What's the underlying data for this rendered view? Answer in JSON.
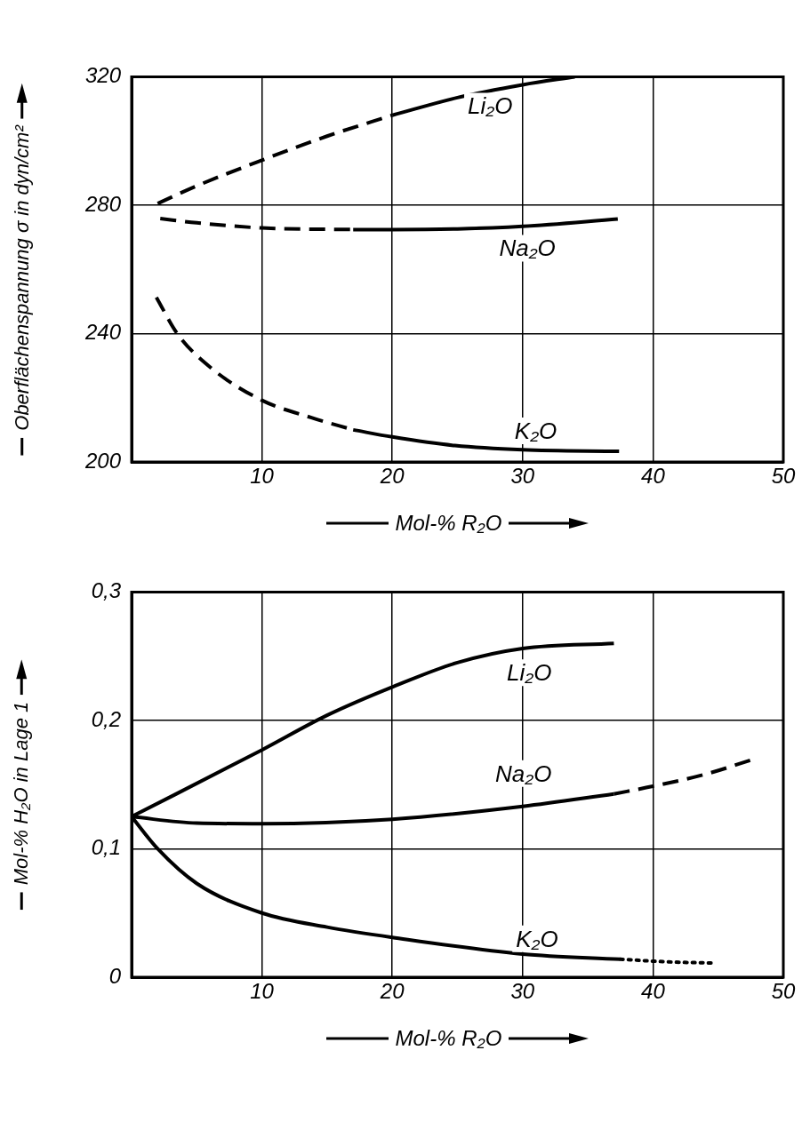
{
  "chart_data": [
    {
      "type": "line",
      "ylabel": "Oberflächenspannung σ in dyn/cm²",
      "xlabel": "Mol-% R₂O",
      "xlim": [
        0,
        50
      ],
      "xticks": [
        10,
        20,
        30,
        40,
        50
      ],
      "ylim": [
        200,
        320
      ],
      "yticks": [
        200,
        240,
        280,
        320
      ],
      "grid": true,
      "legend": false,
      "marker": "none",
      "series": [
        {
          "color": "#000000",
          "line_style": "dashed",
          "x": [
            2,
            5,
            10,
            15,
            20
          ],
          "values": [
            280.5,
            286,
            294,
            301.5,
            308
          ]
        },
        {
          "name": "Li₂O",
          "color": "#000000",
          "line_style": "solid",
          "x": [
            20,
            25,
            30,
            34
          ],
          "values": [
            308,
            313.5,
            317.5,
            320
          ]
        },
        {
          "color": "#000000",
          "line_style": "dashed",
          "x": [
            2.2,
            5,
            10,
            17
          ],
          "values": [
            275.8,
            274.5,
            272.9,
            272.4
          ]
        },
        {
          "name": "Na₂O",
          "color": "#000000",
          "line_style": "solid",
          "x": [
            17,
            20,
            25,
            30,
            37.3
          ],
          "values": [
            272.4,
            272.4,
            272.6,
            273.4,
            275.7
          ]
        },
        {
          "color": "#000000",
          "line_style": "dashed",
          "x": [
            1.9,
            3.5,
            6,
            10,
            13.8,
            17
          ],
          "values": [
            251.3,
            240,
            229.6,
            219.2,
            213.8,
            210
          ]
        },
        {
          "name": "K₂O",
          "color": "#000000",
          "line_style": "solid",
          "x": [
            17,
            20,
            24.8,
            30,
            37.4
          ],
          "values": [
            210,
            207.8,
            205.1,
            203.8,
            203.3
          ]
        }
      ]
    },
    {
      "type": "line",
      "ylabel": "Mol-% H₂O in Lage 1",
      "xlabel": "Mol-% R₂O",
      "xlim": [
        0,
        50
      ],
      "xticks": [
        10,
        20,
        30,
        40,
        50
      ],
      "ylim": [
        0,
        0.3
      ],
      "yticks": [
        0,
        {
          "value": 0.1,
          "label": "0,1"
        },
        {
          "value": 0.2,
          "label": "0,2"
        },
        {
          "value": 0.3,
          "label": "0,3"
        }
      ],
      "grid": true,
      "legend": false,
      "marker": "none",
      "series": [
        {
          "name": "Li₂O",
          "color": "#000000",
          "line_style": "solid",
          "x": [
            0,
            10,
            15,
            20,
            25,
            30,
            37
          ],
          "values": [
            0.125,
            0.177,
            0.204,
            0.226,
            0.245,
            0.256,
            0.26
          ]
        },
        {
          "name": "Na₂O",
          "color": "#000000",
          "line_style": "solid",
          "x": [
            0,
            5,
            10,
            20,
            30,
            37
          ],
          "values": [
            0.125,
            0.12,
            0.1195,
            0.123,
            0.133,
            0.1427
          ]
        },
        {
          "color": "#000000",
          "line_style": "dashed",
          "x": [
            37,
            40,
            44,
            47.5
          ],
          "values": [
            0.1427,
            0.1487,
            0.158,
            0.169
          ]
        },
        {
          "name": "K₂O",
          "color": "#000000",
          "line_style": "solid",
          "x": [
            0,
            2,
            5,
            10,
            15,
            20,
            30,
            37.5
          ],
          "values": [
            0.125,
            0.1,
            0.073,
            0.05,
            0.039,
            0.031,
            0.018,
            0.014
          ]
        },
        {
          "color": "#000000",
          "line_style": "dotted",
          "x": [
            37.5,
            41,
            44.6
          ],
          "values": [
            0.014,
            0.012,
            0.011
          ]
        }
      ]
    }
  ]
}
